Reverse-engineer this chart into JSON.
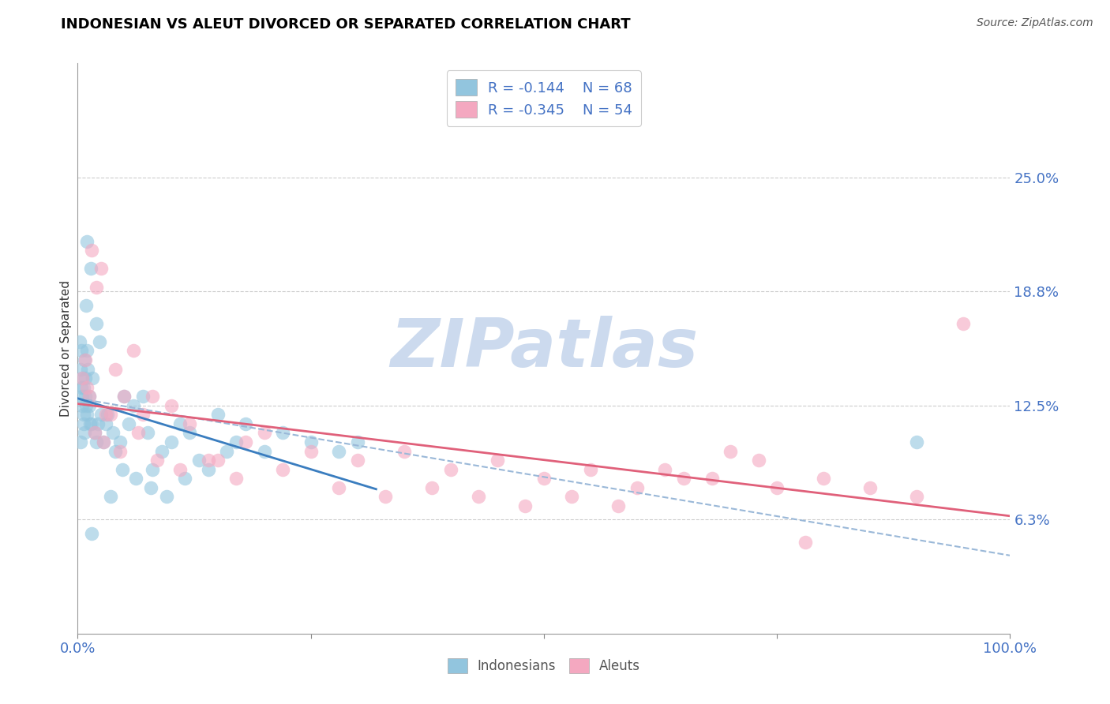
{
  "title": "INDONESIAN VS ALEUT DIVORCED OR SEPARATED CORRELATION CHART",
  "source_text": "Source: ZipAtlas.com",
  "ylabel": "Divorced or Separated",
  "legend_label_1": "Indonesians",
  "legend_label_2": "Aleuts",
  "r1": -0.144,
  "n1": 68,
  "r2": -0.345,
  "n2": 54,
  "color_blue": "#92c5de",
  "color_pink": "#f4a8c0",
  "color_blue_line": "#3a7dbf",
  "color_pink_line": "#e0607a",
  "color_dashed": "#9ab8d8",
  "watermark": "ZIPatlas",
  "watermark_color": "#ccdaee",
  "xlim": [
    0.0,
    100.0
  ],
  "ylim": [
    0.0,
    31.25
  ],
  "ytick_vals": [
    6.25,
    12.5,
    18.75,
    25.0
  ],
  "ytick_labels": [
    "6.3%",
    "12.5%",
    "18.8%",
    "25.0%"
  ],
  "indonesian_x": [
    0.2,
    0.3,
    0.3,
    0.4,
    0.4,
    0.5,
    0.5,
    0.5,
    0.6,
    0.6,
    0.6,
    0.7,
    0.7,
    0.8,
    0.8,
    0.9,
    0.9,
    1.0,
    1.0,
    1.0,
    1.1,
    1.2,
    1.2,
    1.3,
    1.4,
    1.5,
    1.6,
    1.8,
    2.0,
    2.0,
    2.2,
    2.3,
    2.5,
    2.8,
    3.0,
    3.2,
    3.5,
    3.8,
    4.0,
    4.5,
    4.8,
    5.0,
    5.5,
    6.0,
    6.2,
    7.0,
    7.5,
    7.8,
    8.0,
    9.0,
    9.5,
    10.0,
    11.0,
    11.5,
    12.0,
    13.0,
    14.0,
    15.0,
    16.0,
    17.0,
    18.0,
    20.0,
    22.0,
    25.0,
    28.0,
    30.0,
    90.0,
    1.5
  ],
  "indonesian_y": [
    16.0,
    10.5,
    14.5,
    13.5,
    15.5,
    12.5,
    13.0,
    14.0,
    11.5,
    12.0,
    13.5,
    11.0,
    15.0,
    14.0,
    13.0,
    12.5,
    18.0,
    12.0,
    15.5,
    21.5,
    14.5,
    13.0,
    12.5,
    11.5,
    20.0,
    11.5,
    14.0,
    11.0,
    10.5,
    17.0,
    11.5,
    16.0,
    12.0,
    10.5,
    11.5,
    12.0,
    7.5,
    11.0,
    10.0,
    10.5,
    9.0,
    13.0,
    11.5,
    12.5,
    8.5,
    13.0,
    11.0,
    8.0,
    9.0,
    10.0,
    7.5,
    10.5,
    11.5,
    8.5,
    11.0,
    9.5,
    9.0,
    12.0,
    10.0,
    10.5,
    11.5,
    10.0,
    11.0,
    10.5,
    10.0,
    10.5,
    10.5,
    5.5
  ],
  "aleut_x": [
    0.5,
    0.8,
    1.0,
    1.2,
    1.5,
    1.8,
    2.0,
    2.5,
    2.8,
    3.0,
    3.5,
    4.0,
    4.5,
    5.0,
    6.0,
    6.5,
    7.0,
    8.0,
    8.5,
    10.0,
    11.0,
    12.0,
    14.0,
    15.0,
    17.0,
    18.0,
    20.0,
    22.0,
    25.0,
    28.0,
    30.0,
    33.0,
    35.0,
    38.0,
    40.0,
    43.0,
    45.0,
    48.0,
    50.0,
    53.0,
    55.0,
    58.0,
    60.0,
    63.0,
    65.0,
    68.0,
    70.0,
    73.0,
    75.0,
    78.0,
    80.0,
    85.0,
    90.0,
    95.0
  ],
  "aleut_y": [
    14.0,
    15.0,
    13.5,
    13.0,
    21.0,
    11.0,
    19.0,
    20.0,
    10.5,
    12.0,
    12.0,
    14.5,
    10.0,
    13.0,
    15.5,
    11.0,
    12.0,
    13.0,
    9.5,
    12.5,
    9.0,
    11.5,
    9.5,
    9.5,
    8.5,
    10.5,
    11.0,
    9.0,
    10.0,
    8.0,
    9.5,
    7.5,
    10.0,
    8.0,
    9.0,
    7.5,
    9.5,
    7.0,
    8.5,
    7.5,
    9.0,
    7.0,
    8.0,
    9.0,
    8.5,
    8.5,
    10.0,
    9.5,
    8.0,
    5.0,
    8.5,
    8.0,
    7.5,
    17.0
  ]
}
